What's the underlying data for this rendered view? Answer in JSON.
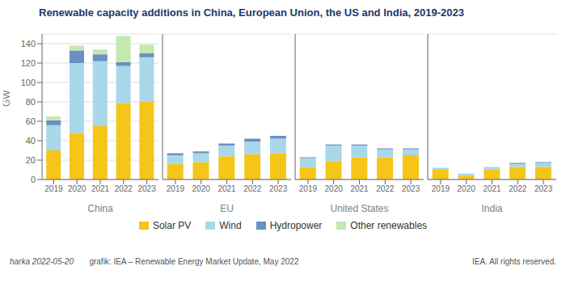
{
  "chart_data": [
    {
      "type": "bar",
      "stacked": true,
      "grid": true,
      "legend": "bottom",
      "title": "Renewable capacity additions in China, European Union, the US and India, 2019-2023",
      "annotations": [
        "harka 2022-05-20",
        "       grafik: IEA – Renewable Energy Market Update, May 2022",
        "IEA. All rights reserved."
      ],
      "xlabel": "China",
      "ylabel": "GW",
      "categories": [
        "2019",
        "2020",
        "2021",
        "2022",
        "2023"
      ],
      "ylim": [
        0,
        150
      ],
      "yticks": [
        0,
        20,
        40,
        60,
        80,
        100,
        120,
        140
      ],
      "series": [
        {
          "name": "Solar PV",
          "color": "#F5C518",
          "values": [
            30,
            48,
            55,
            79,
            80
          ]
        },
        {
          "name": "Wind",
          "color": "#A8D8EA",
          "values": [
            26,
            72,
            67,
            38,
            46
          ]
        },
        {
          "name": "Hydropower",
          "color": "#6B8FBF",
          "values": [
            5,
            13,
            7,
            4,
            4
          ]
        },
        {
          "name": "Other renewables",
          "color": "#C5E8B0",
          "values": [
            4,
            5,
            5,
            27,
            9
          ]
        }
      ]
    },
    {
      "type": "bar",
      "stacked": true,
      "grid": true,
      "tick_labels": "x",
      "xlabel": "EU",
      "categories": [
        "2019",
        "2020",
        "2021",
        "2022",
        "2023"
      ],
      "ylim": [
        0,
        150
      ],
      "yticks": [
        0,
        20,
        40,
        60,
        80,
        100,
        120,
        140
      ],
      "series": [
        {
          "name": "Solar PV",
          "color": "#F5C518",
          "values": [
            16,
            18,
            24,
            26,
            27
          ]
        },
        {
          "name": "Wind",
          "color": "#A8D8EA",
          "values": [
            9,
            9,
            11,
            13,
            15
          ]
        },
        {
          "name": "Hydropower",
          "color": "#6B8FBF",
          "values": [
            2,
            2,
            2,
            3,
            3
          ]
        },
        {
          "name": "Other renewables",
          "color": "#C5E8B0",
          "values": [
            0,
            0,
            0,
            0,
            0
          ]
        }
      ]
    },
    {
      "type": "bar",
      "stacked": true,
      "grid": true,
      "tick_labels": "x",
      "xlabel": "United States",
      "categories": [
        "2019",
        "2020",
        "2021",
        "2022",
        "2023"
      ],
      "ylim": [
        0,
        150
      ],
      "yticks": [
        0,
        20,
        40,
        60,
        80,
        100,
        120,
        140
      ],
      "series": [
        {
          "name": "Solar PV",
          "color": "#F5C518",
          "values": [
            13,
            19,
            23,
            23,
            25
          ]
        },
        {
          "name": "Wind",
          "color": "#A8D8EA",
          "values": [
            9,
            16,
            12,
            8,
            6
          ]
        },
        {
          "name": "Hydropower",
          "color": "#6B8FBF",
          "values": [
            1,
            1,
            1,
            1,
            1
          ]
        },
        {
          "name": "Other renewables",
          "color": "#C5E8B0",
          "values": [
            0,
            0,
            0,
            0,
            0
          ]
        }
      ]
    },
    {
      "type": "bar",
      "stacked": true,
      "grid": true,
      "tick_labels": "x",
      "xlabel": "India",
      "categories": [
        "2019",
        "2020",
        "2021",
        "2022",
        "2023"
      ],
      "ylim": [
        0,
        150
      ],
      "yticks": [
        0,
        20,
        40,
        60,
        80,
        100,
        120,
        140
      ],
      "series": [
        {
          "name": "Solar PV",
          "color": "#F5C518",
          "values": [
            10,
            4,
            10,
            13,
            13
          ]
        },
        {
          "name": "Wind",
          "color": "#A8D8EA",
          "values": [
            2,
            2,
            3,
            3,
            4
          ]
        },
        {
          "name": "Hydropower",
          "color": "#6B8FBF",
          "values": [
            0,
            0,
            0,
            1,
            1
          ]
        },
        {
          "name": "Other renewables",
          "color": "#C5E8B0",
          "values": [
            0,
            0,
            0,
            0,
            0
          ]
        }
      ]
    }
  ]
}
